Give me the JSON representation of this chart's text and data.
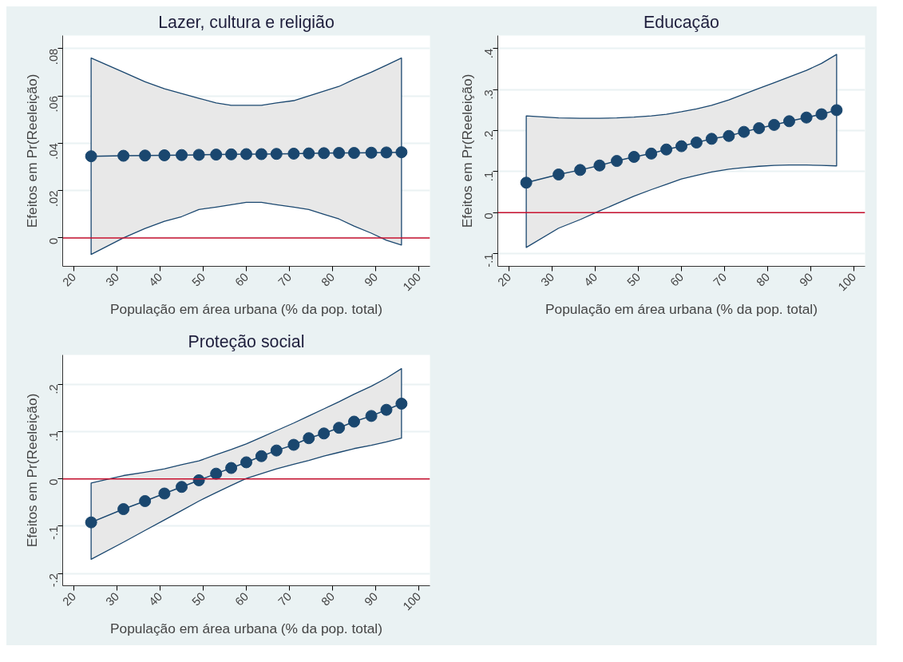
{
  "chart_data": [
    {
      "type": "line",
      "title": "Lazer, cultura e religião",
      "xlabel": "População em área urbana (% da pop. total)",
      "ylabel": "Efeitos em Pr(Reeleição)",
      "x": [
        24,
        31.5,
        36.5,
        41,
        45,
        49,
        53,
        56.5,
        60,
        63.5,
        67,
        71,
        74.5,
        78,
        81.5,
        85,
        89,
        92.5,
        96
      ],
      "series": [
        {
          "color": "#1a476f",
          "values": [
            0.0345,
            0.0347,
            0.0348,
            0.0349,
            0.035,
            0.0351,
            0.0352,
            0.0353,
            0.0354,
            0.0354,
            0.0355,
            0.0356,
            0.0357,
            0.0358,
            0.0359,
            0.0359,
            0.036,
            0.0361,
            0.0362
          ],
          "upper": [
            0.076,
            0.07,
            0.066,
            0.063,
            0.061,
            0.059,
            0.057,
            0.056,
            0.056,
            0.056,
            0.057,
            0.058,
            0.06,
            0.062,
            0.064,
            0.067,
            0.07,
            0.073,
            0.076
          ],
          "lower": [
            -0.007,
            0.0,
            0.004,
            0.007,
            0.009,
            0.012,
            0.013,
            0.014,
            0.015,
            0.015,
            0.014,
            0.013,
            0.012,
            0.01,
            0.008,
            0.005,
            0.002,
            -0.001,
            -0.003
          ]
        }
      ],
      "xlim": [
        17.4,
        102.6
      ],
      "xticks": [
        20,
        30,
        40,
        50,
        60,
        70,
        80,
        90,
        100
      ],
      "ylim": [
        -0.012,
        0.0855
      ],
      "yticks": [
        0,
        {
          "value": 0.02,
          "label": ".02"
        },
        {
          "value": 0.04,
          "label": ".04"
        },
        {
          "value": 0.06,
          "label": ".06"
        },
        {
          "value": 0.08,
          "label": ".08"
        }
      ],
      "ref_lines": [
        {
          "axis": "y",
          "value": 0,
          "color": "#c8102e"
        }
      ],
      "grid": "y",
      "marker": "circle",
      "line_style": "solid"
    },
    {
      "type": "line",
      "title": "Educação",
      "xlabel": "População em área urbana (% da pop. total)",
      "ylabel": "Efeitos em Pr(Reeleição)",
      "x": [
        24,
        31.5,
        36.5,
        41,
        45,
        49,
        53,
        56.5,
        60,
        63.5,
        67,
        71,
        74.5,
        78,
        81.5,
        85,
        89,
        92.5,
        96
      ],
      "series": [
        {
          "color": "#1a476f",
          "values": [
            0.073,
            0.093,
            0.104,
            0.115,
            0.126,
            0.136,
            0.144,
            0.154,
            0.162,
            0.171,
            0.18,
            0.187,
            0.197,
            0.206,
            0.214,
            0.223,
            0.232,
            0.24,
            0.25
          ],
          "upper": [
            0.236,
            0.231,
            0.23,
            0.23,
            0.231,
            0.233,
            0.236,
            0.24,
            0.246,
            0.253,
            0.262,
            0.275,
            0.289,
            0.303,
            0.317,
            0.331,
            0.347,
            0.364,
            0.386
          ],
          "lower": [
            -0.085,
            -0.038,
            -0.017,
            0.004,
            0.022,
            0.04,
            0.056,
            0.069,
            0.082,
            0.091,
            0.099,
            0.106,
            0.11,
            0.113,
            0.115,
            0.116,
            0.116,
            0.115,
            0.114
          ]
        }
      ],
      "xlim": [
        17.4,
        102.6
      ],
      "xticks": [
        20,
        30,
        40,
        50,
        60,
        70,
        80,
        90,
        100
      ],
      "ylim": [
        -0.131,
        0.432
      ],
      "yticks": [
        {
          "value": -0.1,
          "label": "-.1"
        },
        0,
        {
          "value": 0.1,
          "label": ".1"
        },
        {
          "value": 0.2,
          "label": ".2"
        },
        {
          "value": 0.3,
          "label": ".3"
        },
        {
          "value": 0.4,
          "label": ".4"
        }
      ],
      "ref_lines": [
        {
          "axis": "y",
          "value": 0,
          "color": "#c8102e"
        }
      ],
      "grid": "y",
      "marker": "circle",
      "line_style": "solid"
    },
    {
      "type": "line",
      "title": "Proteção social",
      "xlabel": "População em área urbana (% da pop. total)",
      "ylabel": "Efeitos em Pr(Reeleição)",
      "x": [
        24,
        31.5,
        36.5,
        41,
        45,
        49,
        53,
        56.5,
        60,
        63.5,
        67,
        71,
        74.5,
        78,
        81.5,
        85,
        89,
        92.5,
        96
      ],
      "series": [
        {
          "color": "#1a476f",
          "values": [
            -0.092,
            -0.064,
            -0.047,
            -0.031,
            -0.017,
            -0.003,
            0.011,
            0.023,
            0.035,
            0.048,
            0.06,
            0.072,
            0.086,
            0.096,
            0.108,
            0.121,
            0.133,
            0.146,
            0.159
          ],
          "upper": [
            -0.009,
            0.007,
            0.014,
            0.021,
            0.03,
            0.038,
            0.051,
            0.062,
            0.074,
            0.088,
            0.102,
            0.118,
            0.133,
            0.148,
            0.163,
            0.179,
            0.196,
            0.213,
            0.233
          ],
          "lower": [
            -0.17,
            -0.134,
            -0.109,
            -0.087,
            -0.067,
            -0.047,
            -0.029,
            -0.014,
            0.001,
            0.011,
            0.021,
            0.031,
            0.039,
            0.048,
            0.056,
            0.064,
            0.071,
            0.078,
            0.086
          ]
        }
      ],
      "xlim": [
        17.4,
        102.6
      ],
      "xticks": [
        20,
        30,
        40,
        50,
        60,
        70,
        80,
        90,
        100
      ],
      "ylim": [
        -0.226,
        0.262
      ],
      "yticks": [
        {
          "value": -0.2,
          "label": "-.2"
        },
        {
          "value": -0.1,
          "label": "-.1"
        },
        0,
        {
          "value": 0.1,
          "label": ".1"
        },
        {
          "value": 0.2,
          "label": ".2"
        }
      ],
      "ref_lines": [
        {
          "axis": "y",
          "value": 0,
          "color": "#c8102e"
        }
      ],
      "grid": "y",
      "marker": "circle",
      "line_style": "solid"
    }
  ]
}
